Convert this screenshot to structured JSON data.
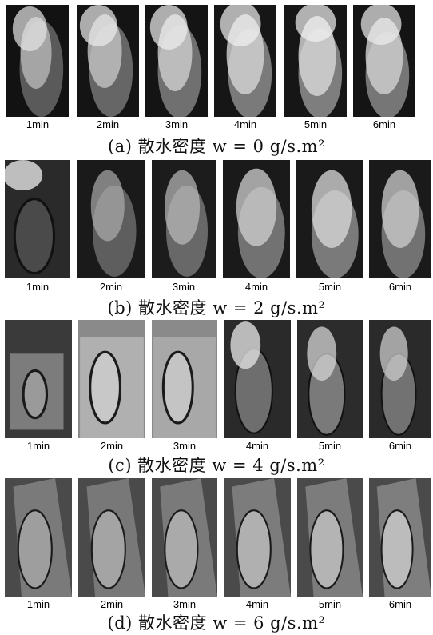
{
  "rows": [
    {
      "caption": "(a)  散水密度  w = 0 g/s.m²",
      "times": [
        "1min",
        "2min",
        "3min",
        "4min",
        "5min",
        "6min"
      ]
    },
    {
      "caption": "(b)  散水密度  w = 2 g/s.m²",
      "times": [
        "1min",
        "2min",
        "3min",
        "4min",
        "5min",
        "6min"
      ]
    },
    {
      "caption": "(c)  散水密度  w = 4 g/s.m²",
      "times": [
        "1min",
        "2min",
        "3min",
        "4min",
        "5min",
        "6min"
      ]
    },
    {
      "caption": "(d)  散水密度  w = 6 g/s.m²",
      "times": [
        "1min",
        "2min",
        "3min",
        "4min",
        "5min",
        "6min"
      ]
    }
  ],
  "colors": {
    "background": "#ffffff",
    "photo_dark": "#1e1e1e",
    "flame": "#e8e8e8"
  }
}
